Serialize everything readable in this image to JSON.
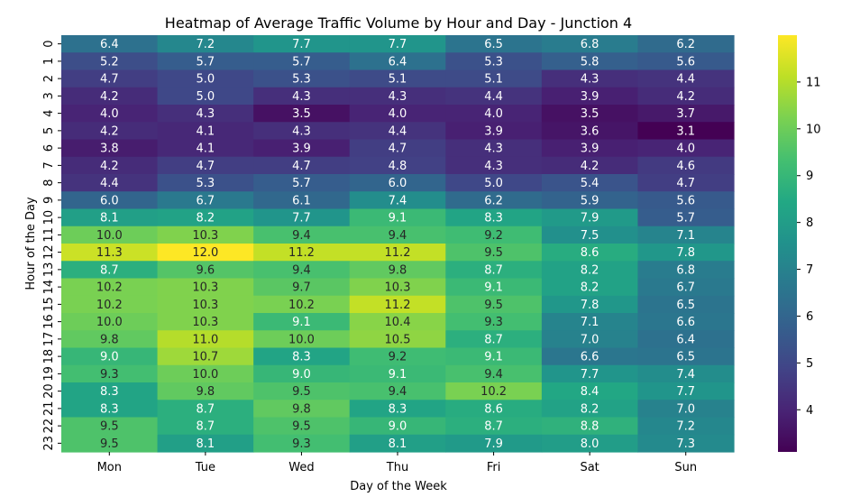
{
  "chart_data": {
    "type": "heatmap",
    "title": "Heatmap of Average Traffic Volume by Hour and Day - Junction 4",
    "xlabel": "Day of the Week",
    "ylabel": "Hour of the Day",
    "x_categories": [
      "Mon",
      "Tue",
      "Wed",
      "Thu",
      "Fri",
      "Sat",
      "Sun"
    ],
    "y_categories": [
      "0",
      "1",
      "2",
      "3",
      "4",
      "5",
      "6",
      "7",
      "8",
      "9",
      "10",
      "11",
      "12",
      "13",
      "14",
      "15",
      "16",
      "17",
      "18",
      "19",
      "20",
      "21",
      "22",
      "23"
    ],
    "values": [
      [
        6.4,
        7.2,
        7.7,
        7.7,
        6.5,
        6.8,
        6.2
      ],
      [
        5.2,
        5.7,
        5.7,
        6.4,
        5.3,
        5.8,
        5.6
      ],
      [
        4.7,
        5.0,
        5.3,
        5.1,
        5.1,
        4.3,
        4.4
      ],
      [
        4.2,
        5.0,
        4.3,
        4.3,
        4.4,
        3.9,
        4.2
      ],
      [
        4.0,
        4.3,
        3.5,
        4.0,
        4.0,
        3.5,
        3.7
      ],
      [
        4.2,
        4.1,
        4.3,
        4.4,
        3.9,
        3.6,
        3.1
      ],
      [
        3.8,
        4.1,
        3.9,
        4.7,
        4.3,
        3.9,
        4.0
      ],
      [
        4.2,
        4.7,
        4.7,
        4.8,
        4.3,
        4.2,
        4.6
      ],
      [
        4.4,
        5.3,
        5.7,
        6.0,
        5.0,
        5.4,
        4.7
      ],
      [
        6.0,
        6.7,
        6.1,
        7.4,
        6.2,
        5.9,
        5.6
      ],
      [
        8.1,
        8.2,
        7.7,
        9.1,
        8.3,
        7.9,
        5.7
      ],
      [
        10.0,
        10.3,
        9.4,
        9.4,
        9.2,
        7.5,
        7.1
      ],
      [
        11.3,
        12.0,
        11.2,
        11.2,
        9.5,
        8.6,
        7.8
      ],
      [
        8.7,
        9.6,
        9.4,
        9.8,
        8.7,
        8.2,
        6.8
      ],
      [
        10.2,
        10.3,
        9.7,
        10.3,
        9.1,
        8.2,
        6.7
      ],
      [
        10.2,
        10.3,
        10.2,
        11.2,
        9.5,
        7.8,
        6.5
      ],
      [
        10.0,
        10.3,
        9.1,
        10.4,
        9.3,
        7.1,
        6.6
      ],
      [
        9.8,
        11.0,
        10.0,
        10.5,
        8.7,
        7.0,
        6.4
      ],
      [
        9.0,
        10.7,
        8.3,
        9.2,
        9.1,
        6.6,
        6.5
      ],
      [
        9.3,
        10.0,
        9.0,
        9.1,
        9.4,
        7.7,
        7.4
      ],
      [
        8.3,
        9.8,
        9.5,
        9.4,
        10.2,
        8.4,
        7.7
      ],
      [
        8.3,
        8.7,
        9.8,
        8.3,
        8.6,
        8.2,
        7.0
      ],
      [
        9.5,
        8.7,
        9.5,
        9.0,
        8.7,
        8.8,
        7.2
      ],
      [
        9.5,
        8.1,
        9.3,
        8.1,
        7.9,
        8.0,
        7.3
      ]
    ],
    "colormap": "viridis",
    "value_range": [
      3.1,
      12.0
    ],
    "colorbar_ticks": [
      "4",
      "5",
      "6",
      "7",
      "8",
      "9",
      "10",
      "11"
    ],
    "annotations": true,
    "grid": false,
    "legend": "colorbar-right"
  }
}
